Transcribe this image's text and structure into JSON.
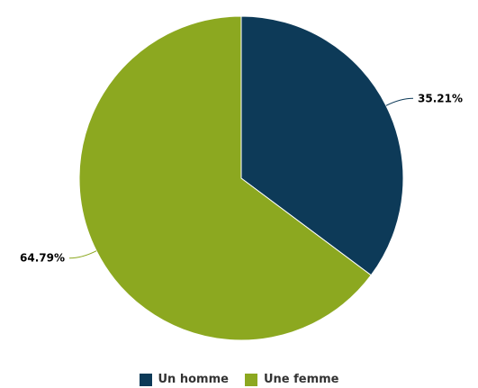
{
  "chart_data": {
    "type": "pie",
    "categories": [
      "Un homme",
      "Une femme"
    ],
    "values": [
      35.21,
      64.79
    ],
    "labels": [
      "35.21%",
      "64.79%"
    ],
    "colors": [
      "#0d3a58",
      "#8ca820"
    ],
    "start_angle_deg": 0,
    "direction": "clockwise",
    "legend_placement": "bottom"
  },
  "legend": {
    "items": [
      {
        "label": "Un homme",
        "color": "#0d3a58"
      },
      {
        "label": "Une femme",
        "color": "#8ca820"
      }
    ]
  }
}
